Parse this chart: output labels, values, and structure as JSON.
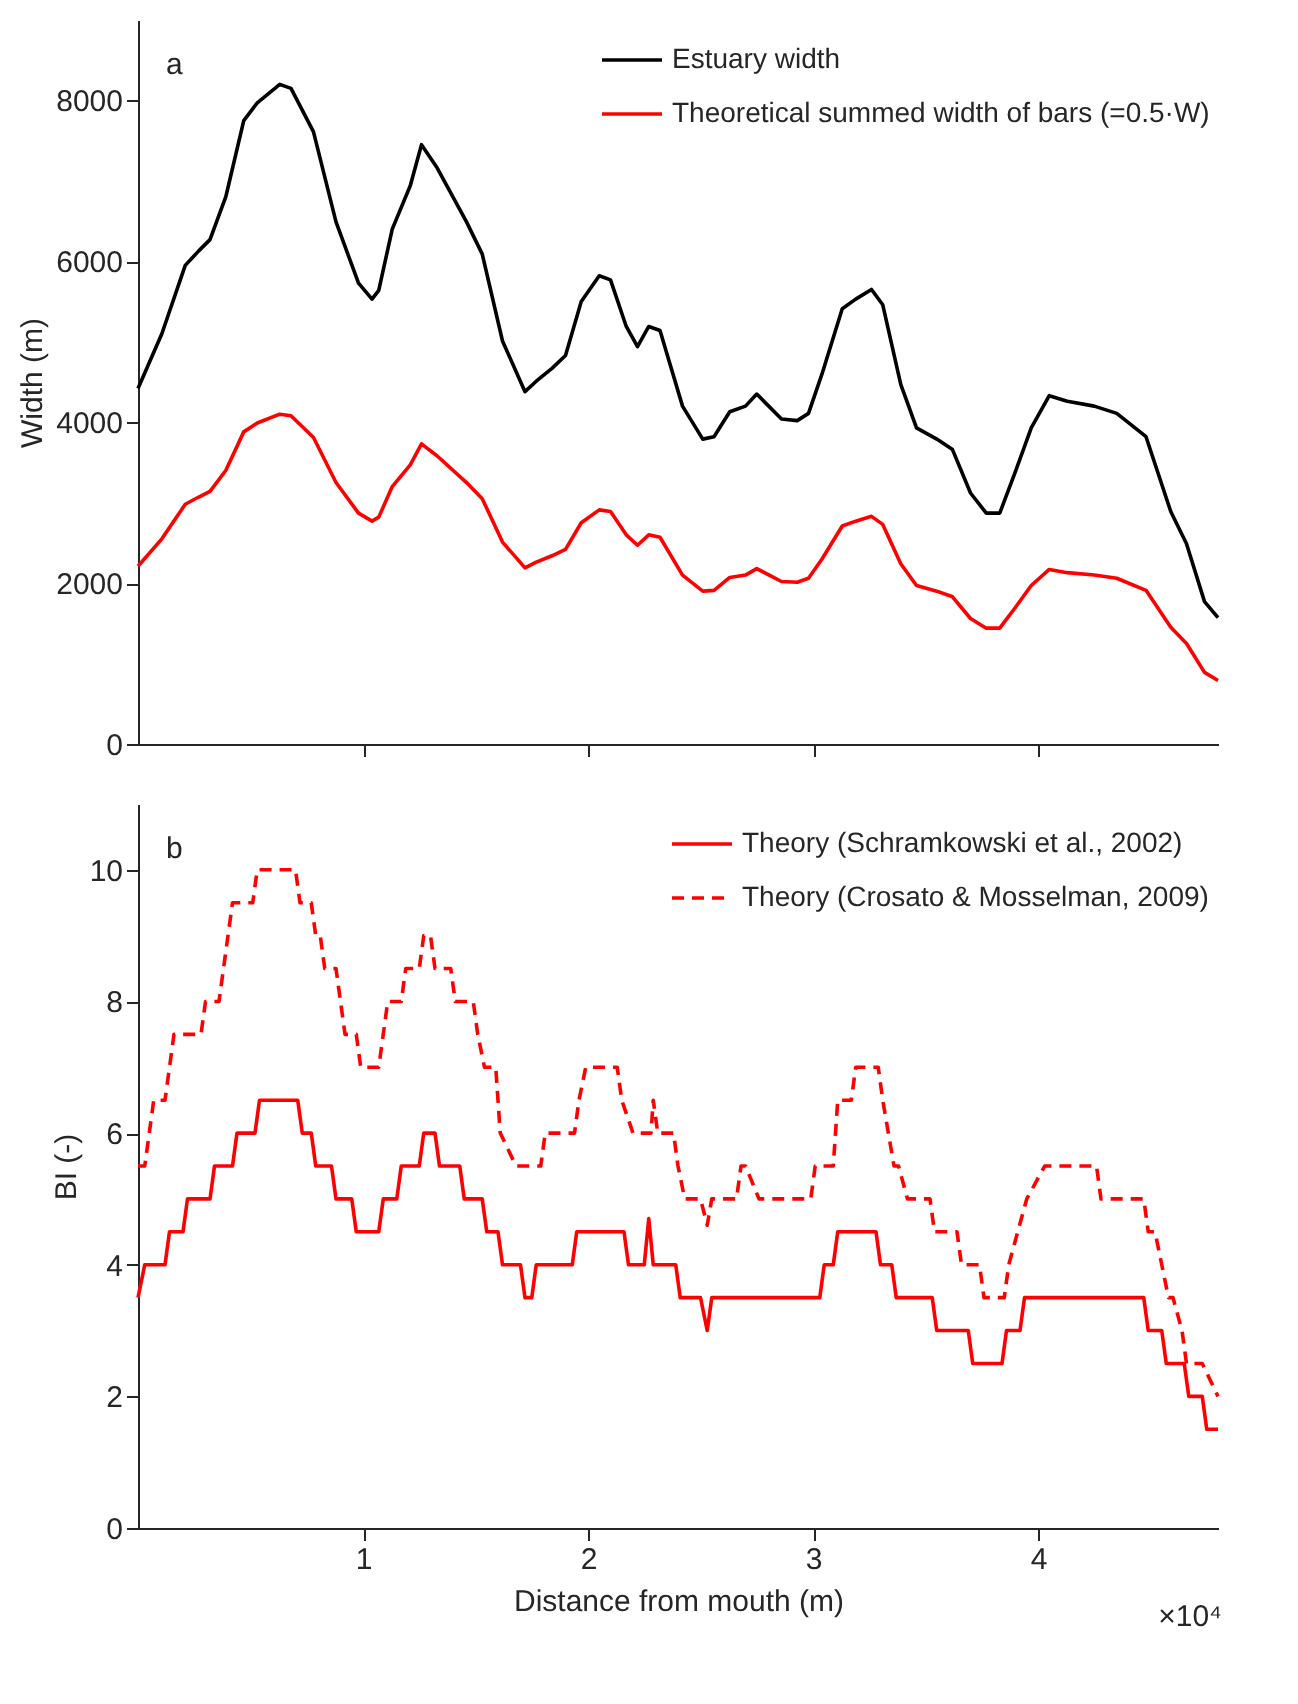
{
  "chart_data": [
    {
      "type": "line",
      "ylabel": "Width (m)",
      "annotations": [
        "a"
      ],
      "xlim": [
        0,
        4.8
      ],
      "xticks": [
        1,
        2,
        3,
        4
      ],
      "ylim": [
        0,
        9000
      ],
      "yticks": [
        0,
        2000,
        4000,
        6000,
        8000
      ],
      "tick_labels": "y",
      "grid": false,
      "legend": "top right",
      "line_style": "solid",
      "series": [
        {
          "name": "Estuary width",
          "color": "#000000",
          "x": [
            0,
            0.106,
            0.21,
            0.27,
            0.32,
            0.39,
            0.47,
            0.53,
            0.63,
            0.68,
            0.78,
            0.88,
            0.98,
            1.04,
            1.07,
            1.13,
            1.21,
            1.26,
            1.33,
            1.46,
            1.53,
            1.62,
            1.72,
            1.77,
            1.84,
            1.9,
            1.97,
            2.05,
            2.1,
            2.17,
            2.22,
            2.27,
            2.32,
            2.42,
            2.51,
            2.56,
            2.63,
            2.7,
            2.75,
            2.86,
            2.93,
            2.98,
            3.04,
            3.13,
            3.19,
            3.26,
            3.31,
            3.39,
            3.46,
            3.55,
            3.62,
            3.7,
            3.77,
            3.83,
            3.9,
            3.97,
            4.05,
            4.13,
            4.25,
            4.35,
            4.48,
            4.59,
            4.66,
            4.74,
            4.8
          ],
          "values": [
            4420,
            5100,
            5950,
            6130,
            6270,
            6800,
            7750,
            7970,
            8200,
            8150,
            7610,
            6490,
            5730,
            5530,
            5640,
            6400,
            6940,
            7450,
            7160,
            6490,
            6090,
            5010,
            4380,
            4510,
            4670,
            4830,
            5500,
            5820,
            5770,
            5190,
            4940,
            5190,
            5140,
            4200,
            3790,
            3820,
            4130,
            4200,
            4350,
            4040,
            4020,
            4110,
            4600,
            5410,
            5530,
            5650,
            5460,
            4470,
            3930,
            3790,
            3660,
            3120,
            2870,
            2870,
            3390,
            3930,
            4330,
            4260,
            4200,
            4110,
            3820,
            2890,
            2490,
            1770,
            1570
          ]
        },
        {
          "name": "Theoretical summed width of bars (=0.5·W)",
          "color": "#ff0000",
          "x": [
            0,
            0.106,
            0.21,
            0.27,
            0.32,
            0.39,
            0.47,
            0.53,
            0.63,
            0.68,
            0.78,
            0.88,
            0.98,
            1.04,
            1.07,
            1.13,
            1.21,
            1.26,
            1.33,
            1.46,
            1.53,
            1.62,
            1.72,
            1.77,
            1.84,
            1.9,
            1.97,
            2.05,
            2.1,
            2.17,
            2.22,
            2.27,
            2.32,
            2.42,
            2.51,
            2.56,
            2.63,
            2.7,
            2.75,
            2.86,
            2.93,
            2.98,
            3.04,
            3.13,
            3.19,
            3.26,
            3.31,
            3.39,
            3.46,
            3.55,
            3.62,
            3.7,
            3.77,
            3.83,
            3.9,
            3.97,
            4.05,
            4.13,
            4.25,
            4.35,
            4.48,
            4.59,
            4.66,
            4.74,
            4.8
          ],
          "values": [
            2210,
            2550,
            2980,
            3070,
            3140,
            3400,
            3880,
            3990,
            4100,
            4080,
            3810,
            3250,
            2870,
            2770,
            2820,
            3200,
            3470,
            3730,
            3580,
            3250,
            3050,
            2510,
            2190,
            2260,
            2340,
            2420,
            2750,
            2910,
            2890,
            2600,
            2470,
            2600,
            2570,
            2100,
            1900,
            1910,
            2070,
            2100,
            2180,
            2020,
            2010,
            2060,
            2300,
            2710,
            2770,
            2830,
            2730,
            2240,
            1970,
            1900,
            1830,
            1560,
            1440,
            1440,
            1700,
            1970,
            2170,
            2130,
            2100,
            2060,
            1910,
            1450,
            1250,
            890,
            790
          ]
        }
      ]
    },
    {
      "type": "line",
      "xlabel": "Distance from mouth (m)",
      "ylabel": "BI (-)",
      "annotations": [
        "b",
        "×10⁴"
      ],
      "xlim": [
        0,
        4.8
      ],
      "xticks": [
        1,
        2,
        3,
        4
      ],
      "ylim": [
        0,
        11
      ],
      "yticks": [
        0,
        2,
        4,
        6,
        8,
        10
      ],
      "grid": false,
      "legend": "top right",
      "series": [
        {
          "name": "Theory (Schramkowski et al., 2002)",
          "color": "#ff0000",
          "line_style": "solid",
          "x": [
            0,
            0.03,
            0.12,
            0.14,
            0.2,
            0.22,
            0.32,
            0.34,
            0.42,
            0.44,
            0.52,
            0.54,
            0.71,
            0.73,
            0.77,
            0.79,
            0.86,
            0.88,
            0.95,
            0.97,
            1.07,
            1.09,
            1.15,
            1.17,
            1.25,
            1.27,
            1.32,
            1.34,
            1.43,
            1.45,
            1.53,
            1.55,
            1.6,
            1.62,
            1.7,
            1.72,
            1.75,
            1.77,
            1.93,
            1.95,
            2.16,
            2.18,
            2.25,
            2.27,
            2.29,
            2.3,
            2.39,
            2.41,
            2.5,
            2.53,
            2.55,
            3.03,
            3.05,
            3.09,
            3.11,
            3.28,
            3.3,
            3.35,
            3.37,
            3.53,
            3.55,
            3.69,
            3.71,
            3.84,
            3.86,
            3.92,
            3.94,
            4.47,
            4.49,
            4.55,
            4.57,
            4.65,
            4.67,
            4.73,
            4.75,
            4.8
          ],
          "values": [
            3.5,
            4,
            4,
            4.5,
            4.5,
            5,
            5,
            5.5,
            5.5,
            6,
            6,
            6.5,
            6.5,
            6,
            6,
            5.5,
            5.5,
            5,
            5,
            4.5,
            4.5,
            5,
            5,
            5.5,
            5.5,
            6,
            6,
            5.5,
            5.5,
            5,
            5,
            4.5,
            4.5,
            4,
            4,
            3.5,
            3.5,
            4,
            4,
            4.5,
            4.5,
            4,
            4,
            4.7,
            4,
            4,
            4,
            3.5,
            3.5,
            3,
            3.5,
            3.5,
            4,
            4,
            4.5,
            4.5,
            4,
            4,
            3.5,
            3.5,
            3,
            3,
            2.5,
            2.5,
            3,
            3,
            3.5,
            3.5,
            3,
            3,
            2.5,
            2.5,
            2,
            2,
            1.5,
            1.5
          ]
        },
        {
          "name": "Theory (Crosato & Mosselman, 2009)",
          "color": "#ff0000",
          "line_style": "dashed",
          "x": [
            0,
            0.03,
            0.05,
            0.07,
            0.12,
            0.14,
            0.16,
            0.28,
            0.3,
            0.36,
            0.38,
            0.42,
            0.51,
            0.53,
            0.7,
            0.72,
            0.77,
            0.79,
            0.81,
            0.83,
            0.88,
            0.9,
            0.92,
            0.97,
            0.99,
            1.07,
            1.09,
            1.11,
            1.17,
            1.19,
            1.25,
            1.27,
            1.3,
            1.32,
            1.39,
            1.41,
            1.49,
            1.51,
            1.54,
            1.59,
            1.61,
            1.68,
            1.79,
            1.81,
            1.94,
            1.96,
            1.99,
            2.13,
            2.15,
            2.2,
            2.28,
            2.29,
            2.31,
            2.38,
            2.4,
            2.43,
            2.5,
            2.53,
            2.55,
            2.66,
            2.68,
            2.7,
            2.76,
            2.78,
            2.99,
            3.01,
            3.09,
            3.11,
            3.17,
            3.19,
            3.29,
            3.31,
            3.36,
            3.38,
            3.42,
            3.52,
            3.54,
            3.64,
            3.66,
            3.74,
            3.76,
            3.85,
            3.87,
            3.91,
            3.95,
            4.03,
            4.26,
            4.28,
            4.47,
            4.49,
            4.52,
            4.58,
            4.6,
            4.64,
            4.66,
            4.73,
            4.8
          ],
          "values": [
            5.5,
            5.5,
            6,
            6.5,
            6.5,
            7,
            7.5,
            7.5,
            8,
            8,
            8.5,
            9.5,
            9.5,
            10,
            10,
            9.5,
            9.5,
            9,
            9,
            8.5,
            8.5,
            8,
            7.5,
            7.5,
            7,
            7,
            7.5,
            8,
            8,
            8.5,
            8.5,
            9,
            9,
            8.5,
            8.5,
            8,
            8,
            7.5,
            7,
            7,
            6,
            5.5,
            5.5,
            6,
            6,
            6.5,
            7,
            7,
            6.5,
            6,
            6,
            6.5,
            6,
            6,
            5.5,
            5,
            5,
            4.6,
            5,
            5,
            5.5,
            5.5,
            5,
            5,
            5,
            5.5,
            5.5,
            6.5,
            6.5,
            7,
            7,
            6.5,
            5.5,
            5.5,
            5,
            5,
            4.5,
            4.5,
            4,
            4,
            3.5,
            3.5,
            4,
            4.5,
            5,
            5.5,
            5.5,
            5,
            5,
            4.5,
            4.5,
            3.5,
            3.5,
            3,
            2.5,
            2.5,
            2
          ]
        }
      ]
    }
  ]
}
